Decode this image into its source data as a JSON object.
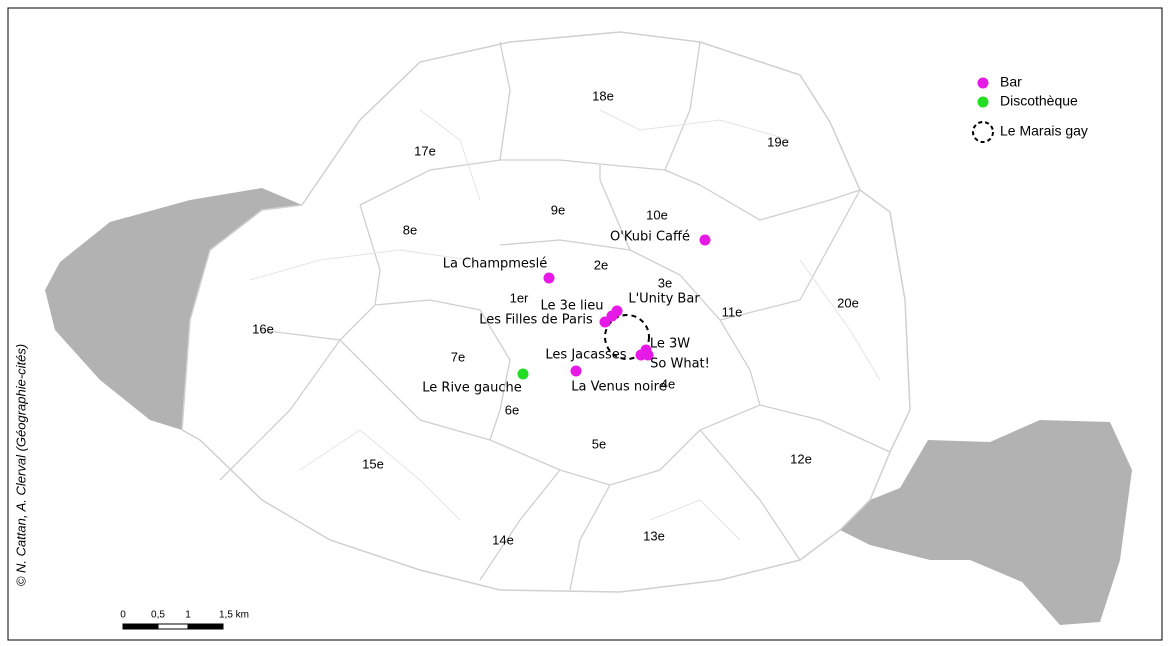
{
  "legend": {
    "items": [
      {
        "label": "Bar",
        "color": "#e619e6"
      },
      {
        "label": "Discothèque",
        "color": "#22dd22"
      },
      {
        "label": "Le Marais gay"
      }
    ]
  },
  "districts": [
    "17e",
    "18e",
    "19e",
    "8e",
    "9e",
    "10e",
    "2e",
    "3e",
    "1er",
    "11e",
    "20e",
    "16e",
    "7e",
    "4e",
    "6e",
    "5e",
    "15e",
    "12e",
    "14e",
    "13e"
  ],
  "venues": [
    {
      "name": "O'Kubi Caffé",
      "category": 0
    },
    {
      "name": "La Champmeslé",
      "category": 0
    },
    {
      "name": "L'Unity Bar",
      "category": 0
    },
    {
      "name": "Le 3e lieu",
      "category": 0
    },
    {
      "name": "Les Filles de Paris",
      "category": 0
    },
    {
      "name": "Le 3W",
      "category": 0
    },
    {
      "name": "So What!",
      "category": 0
    },
    {
      "name": "Les Jacasses",
      "category": 0
    },
    {
      "name": "La Venus noire",
      "category": 0
    },
    {
      "name": "Le Rive gauche",
      "category": 1
    }
  ],
  "scale_bar": {
    "labels": [
      "0",
      "0,5",
      "1",
      "1,5 km"
    ]
  },
  "credit": "© N. Cattan, A. Clerval (Géographie-cités)"
}
